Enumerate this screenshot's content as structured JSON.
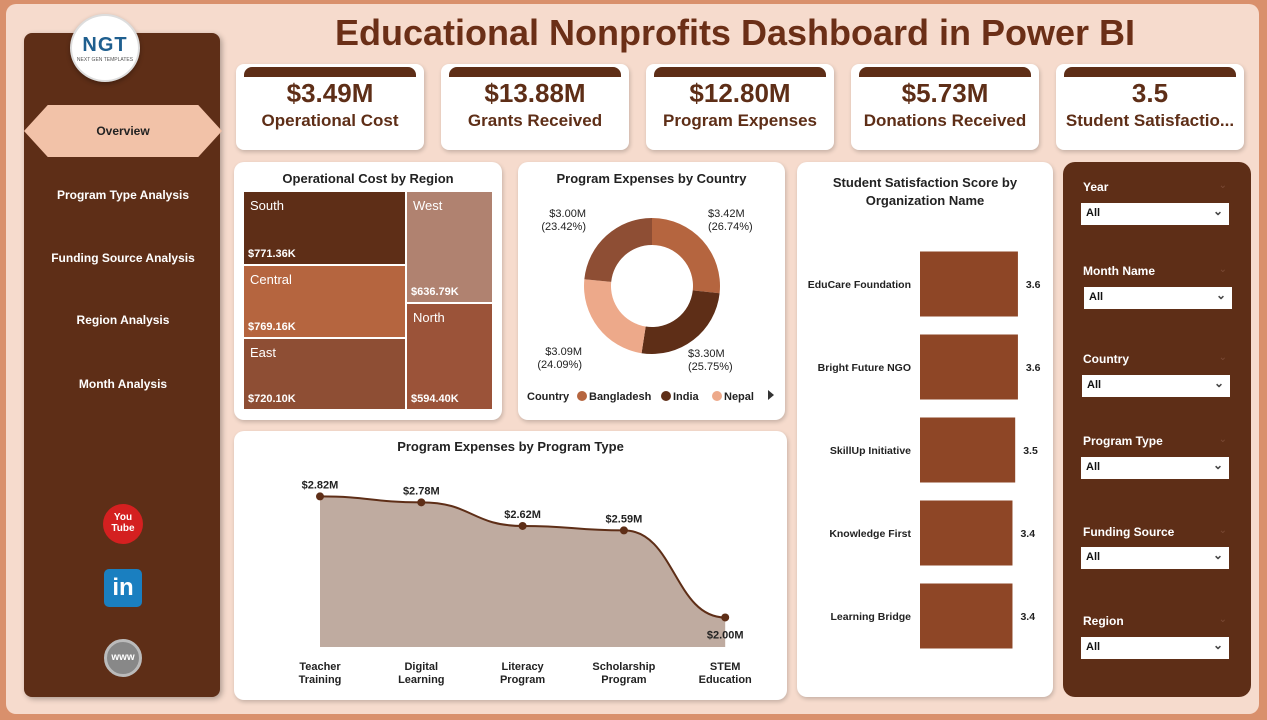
{
  "title": "Educational Nonprofits Dashboard in Power BI",
  "logo": {
    "text": "NGT",
    "sub": "NEXT GEN TEMPLATES"
  },
  "nav": [
    {
      "label": "Overview",
      "active": true
    },
    {
      "label": "Program Type Analysis"
    },
    {
      "label": "Funding Source Analysis"
    },
    {
      "label": "Region Analysis"
    },
    {
      "label": "Month Analysis"
    }
  ],
  "social": [
    {
      "icon": "youtube-icon",
      "label": "You Tube"
    },
    {
      "icon": "linkedin-icon",
      "label": "in"
    },
    {
      "icon": "globe-icon",
      "label": "www"
    }
  ],
  "kpis": [
    {
      "value": "$3.49M",
      "label": "Operational Cost"
    },
    {
      "value": "$13.88M",
      "label": "Grants Received"
    },
    {
      "value": "$12.80M",
      "label": "Program Expenses"
    },
    {
      "value": "$5.73M",
      "label": "Donations Received"
    },
    {
      "value": "3.5",
      "label": "Student Satisfactio..."
    }
  ],
  "treemap": {
    "title": "Operational Cost by Region",
    "items": [
      {
        "name": "South",
        "value": "$771.36K",
        "color": "#5e2e17"
      },
      {
        "name": "Central",
        "value": "$769.16K",
        "color": "#b5653f"
      },
      {
        "name": "East",
        "value": "$720.10K",
        "color": "#8e4e34"
      },
      {
        "name": "West",
        "value": "$636.79K",
        "color": "#b08270"
      },
      {
        "name": "North",
        "value": "$594.40K",
        "color": "#9b5339"
      }
    ]
  },
  "chart_data": [
    {
      "type": "pie",
      "title": "Program Expenses by Country",
      "legend_title": "Country",
      "legend_position": "bottom",
      "slices": [
        {
          "name": "Bangladesh",
          "value": 3.42,
          "label": "$3.42M",
          "pct": "(26.74%)",
          "color": "#b5653f"
        },
        {
          "name": "India",
          "value": 3.3,
          "label": "$3.30M",
          "pct": "(25.75%)",
          "color": "#5e2e17"
        },
        {
          "name": "Nepal",
          "value": 3.09,
          "label": "$3.09M",
          "pct": "(24.09%)",
          "color": "#eda98a"
        },
        {
          "value": 3.0,
          "label": "$3.00M",
          "pct": "(23.42%)",
          "color": "#8e4e34"
        }
      ]
    },
    {
      "type": "area",
      "title": "Program Expenses by Program Type",
      "categories": [
        "Teacher Training",
        "Digital Learning",
        "Literacy Program",
        "Scholarship Program",
        "STEM Education"
      ],
      "values": [
        2.82,
        2.78,
        2.62,
        2.59,
        2.0
      ],
      "labels": [
        "$2.82M",
        "$2.78M",
        "$2.62M",
        "$2.59M",
        "$2.00M"
      ],
      "ylim": [
        1.8,
        2.85
      ],
      "color": "#5e2e17",
      "fill": "#bfaba0"
    },
    {
      "type": "bar",
      "orientation": "horizontal",
      "title": "Student Satisfaction Score by Organization Name",
      "categories": [
        "EduCare Foundation",
        "Bright Future NGO",
        "SkillUp Initiative",
        "Knowledge First",
        "Learning Bridge"
      ],
      "values": [
        3.6,
        3.6,
        3.5,
        3.4,
        3.4
      ],
      "color": "#8e4626"
    }
  ],
  "filters": [
    {
      "label": "Year",
      "value": "All"
    },
    {
      "label": "Month Name",
      "value": "All"
    },
    {
      "label": "Country",
      "value": "All"
    },
    {
      "label": "Program Type",
      "value": "All"
    },
    {
      "label": "Funding Source",
      "value": "All"
    },
    {
      "label": "Region",
      "value": "All"
    }
  ]
}
